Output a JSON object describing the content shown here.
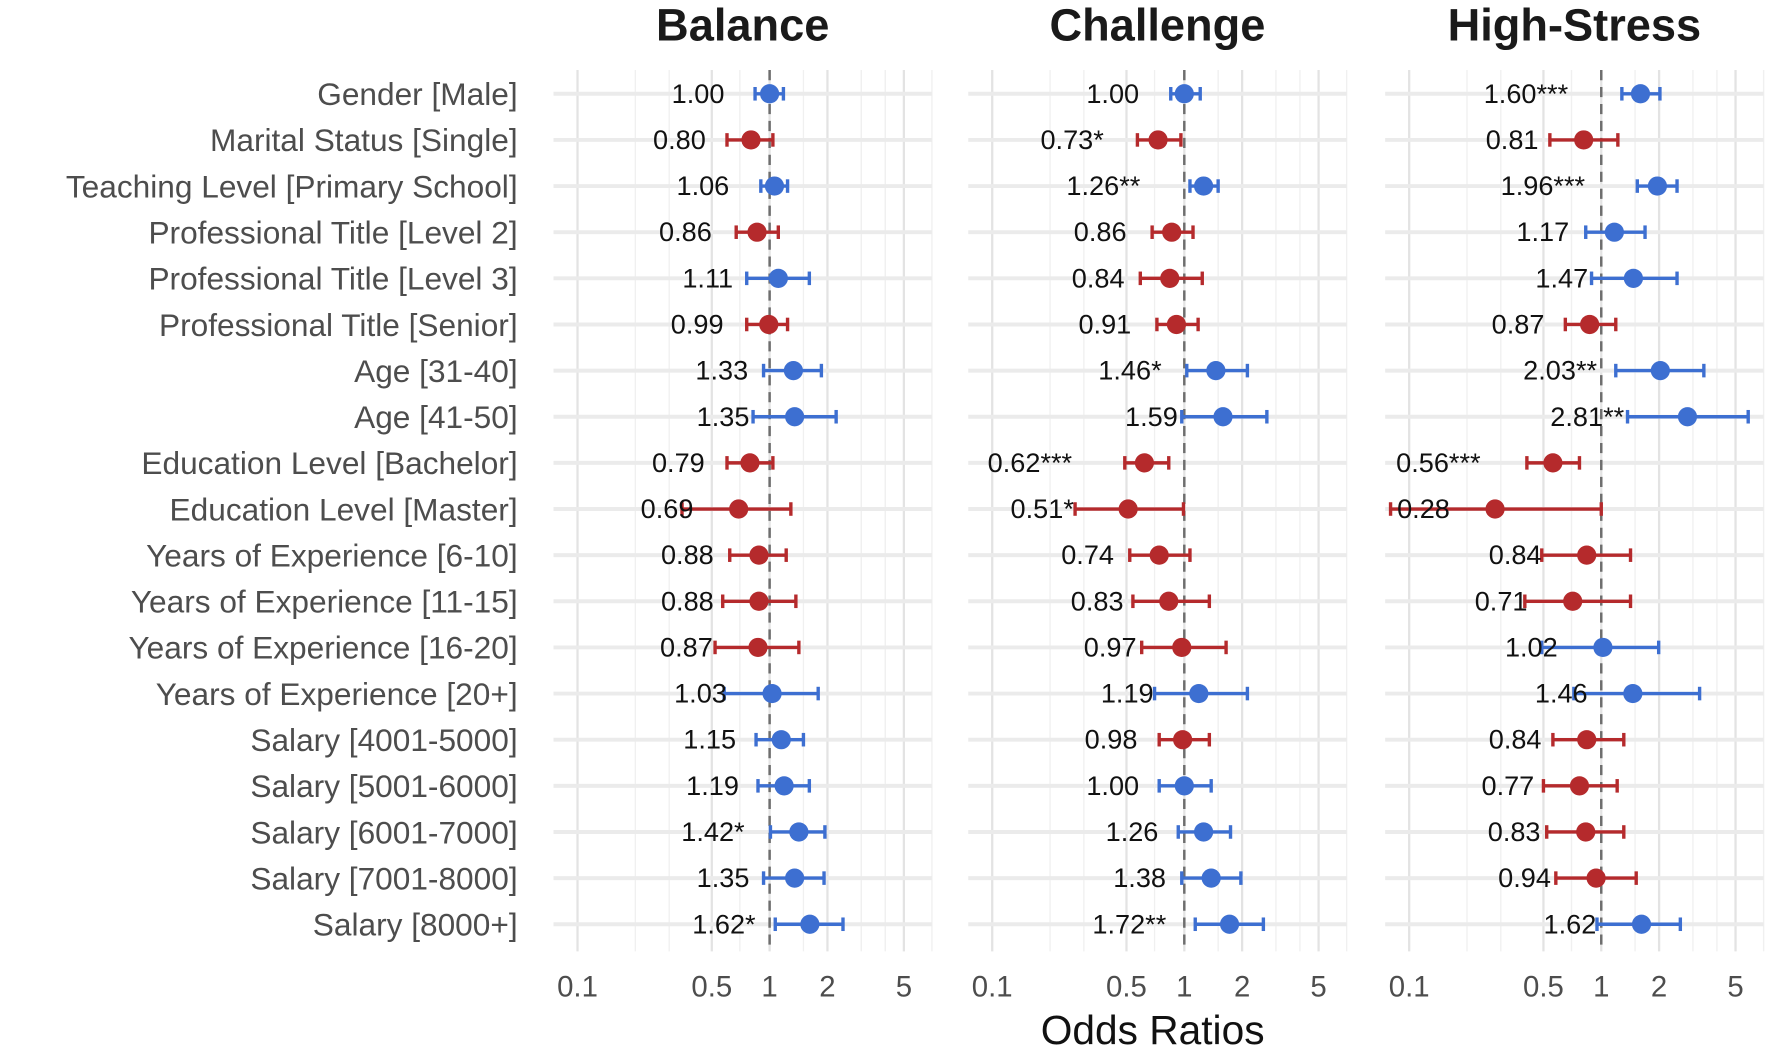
{
  "chart_data": {
    "type": "forest",
    "xlabel": "Odds Ratios",
    "xscale": "log10",
    "xlim": [
      0.075,
      7
    ],
    "xticks": [
      "0.1",
      "0.5",
      "1",
      "2",
      "5"
    ],
    "reference_line": 1,
    "colors": {
      "positive": "#3d6fd1",
      "negative": "#b52a2c"
    },
    "categories": [
      "Gender [Male]",
      "Marital Status [Single]",
      "Teaching Level [Primary School]",
      "Professional Title [Level 2]",
      "Professional Title [Level 3]",
      "Professional Title [Senior]",
      "Age [31-40]",
      "Age [41-50]",
      "Education Level [Bachelor]",
      "Education Level [Master]",
      "Years of Experience [6-10]",
      "Years of Experience [11-15]",
      "Years of Experience [16-20]",
      "Years of Experience [20+]",
      "Salary [4001-5000]",
      "Salary [5001-6000]",
      "Salary [6001-7000]",
      "Salary [7001-8000]",
      "Salary [8000+]"
    ],
    "panels": [
      {
        "title": "Balance",
        "or": [
          1.0,
          0.8,
          1.06,
          0.86,
          1.11,
          0.99,
          1.33,
          1.35,
          0.79,
          0.69,
          0.88,
          0.88,
          0.87,
          1.03,
          1.15,
          1.19,
          1.42,
          1.35,
          1.62
        ],
        "labels": [
          "1.00",
          "0.80",
          "1.06",
          "0.86",
          "1.11",
          "0.99",
          "1.33",
          "1.35",
          "0.79",
          "0.69",
          "0.88",
          "0.88",
          "0.87",
          "1.03",
          "1.15",
          "1.19",
          "1.42*",
          "1.35",
          "1.62*"
        ],
        "lower": [
          0.84,
          0.6,
          0.9,
          0.67,
          0.76,
          0.76,
          0.93,
          0.82,
          0.6,
          0.35,
          0.62,
          0.57,
          0.52,
          0.58,
          0.85,
          0.87,
          1.01,
          0.93,
          1.07
        ],
        "upper": [
          1.18,
          1.04,
          1.24,
          1.11,
          1.61,
          1.24,
          1.86,
          2.22,
          1.04,
          1.29,
          1.22,
          1.37,
          1.42,
          1.79,
          1.5,
          1.61,
          1.94,
          1.92,
          2.41
        ]
      },
      {
        "title": "Challenge",
        "or": [
          1.0,
          0.73,
          1.26,
          0.86,
          0.84,
          0.91,
          1.46,
          1.59,
          0.62,
          0.51,
          0.74,
          0.83,
          0.97,
          1.19,
          0.98,
          1.0,
          1.26,
          1.38,
          1.72
        ],
        "labels": [
          "1.00",
          "0.73*",
          "1.26**",
          "0.86",
          "0.84",
          "0.91",
          "1.46*",
          "1.59",
          "0.62***",
          "0.51*",
          "0.74",
          "0.83",
          "0.97",
          "1.19",
          "0.98",
          "1.00",
          "1.26",
          "1.38",
          "1.72**"
        ],
        "lower": [
          0.85,
          0.57,
          1.07,
          0.68,
          0.59,
          0.72,
          1.03,
          0.97,
          0.49,
          0.27,
          0.52,
          0.54,
          0.6,
          0.7,
          0.74,
          0.74,
          0.93,
          0.97,
          1.14
        ],
        "upper": [
          1.21,
          0.96,
          1.5,
          1.11,
          1.24,
          1.18,
          2.13,
          2.69,
          0.83,
          0.99,
          1.07,
          1.35,
          1.65,
          2.13,
          1.35,
          1.38,
          1.74,
          1.97,
          2.58
        ]
      },
      {
        "title": "High-Stress",
        "or": [
          1.6,
          0.81,
          1.96,
          1.17,
          1.47,
          0.87,
          2.03,
          2.81,
          0.56,
          0.28,
          0.84,
          0.71,
          1.02,
          1.46,
          0.84,
          0.77,
          0.83,
          0.94,
          1.62
        ],
        "labels": [
          "1.60***",
          "0.81",
          "1.96***",
          "1.17",
          "1.47",
          "0.87",
          "2.03**",
          "2.81**",
          "0.56***",
          "0.28",
          "0.84",
          "0.71",
          "1.02",
          "1.46",
          "0.84",
          "0.77",
          "0.83",
          "0.94",
          "1.62"
        ],
        "lower": [
          1.28,
          0.54,
          1.54,
          0.83,
          0.89,
          0.65,
          1.19,
          1.37,
          0.41,
          0.08,
          0.49,
          0.4,
          0.49,
          0.72,
          0.56,
          0.5,
          0.52,
          0.58,
          0.95
        ],
        "upper": [
          2.02,
          1.22,
          2.48,
          1.69,
          2.48,
          1.19,
          3.42,
          5.82,
          0.77,
          1.0,
          1.42,
          1.42,
          1.99,
          3.25,
          1.31,
          1.21,
          1.31,
          1.52,
          2.58
        ]
      }
    ]
  }
}
